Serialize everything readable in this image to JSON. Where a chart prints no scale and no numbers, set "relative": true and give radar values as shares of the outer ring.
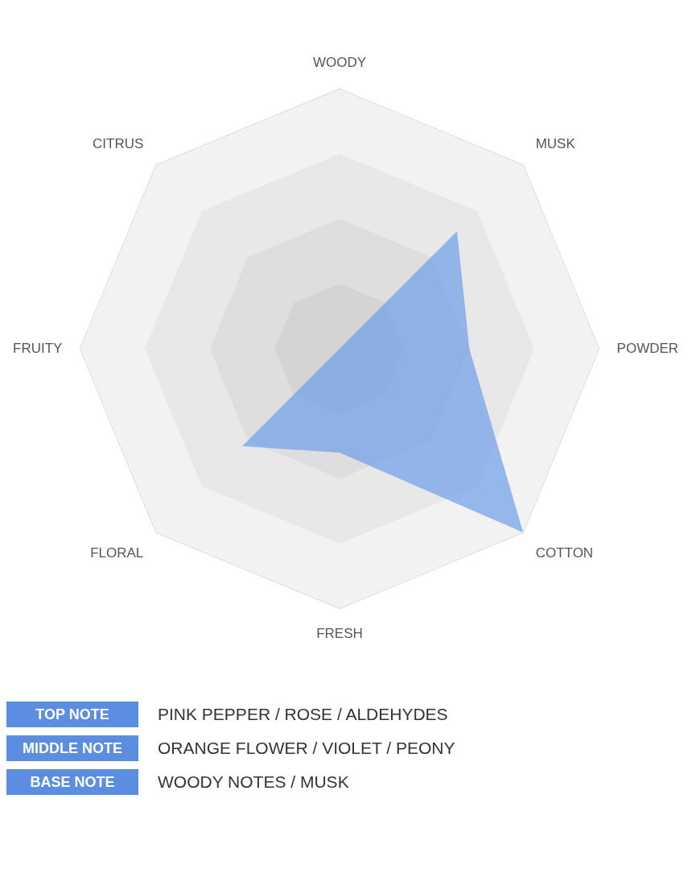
{
  "chart_data": {
    "type": "radar",
    "relative": true,
    "categories": [
      "WOODY",
      "MUSK",
      "POWDER",
      "COTTON",
      "FRESH",
      "FLORAL",
      "FRUITY",
      "CITRUS"
    ],
    "series": [
      {
        "color": "#6f9ee9",
        "values": [
          0,
          0.64,
          0.5,
          1,
          0.4,
          0.53,
          0,
          0
        ]
      }
    ],
    "annotations": [
      "TOP NOTE",
      "PINK PEPPER / ROSE / ALDEHYDES",
      "MIDDLE NOTE",
      "ORANGE FLOWER / VIOLET / PEONY",
      "BASE NOTE",
      "WOODY NOTES / MUSK"
    ]
  }
}
